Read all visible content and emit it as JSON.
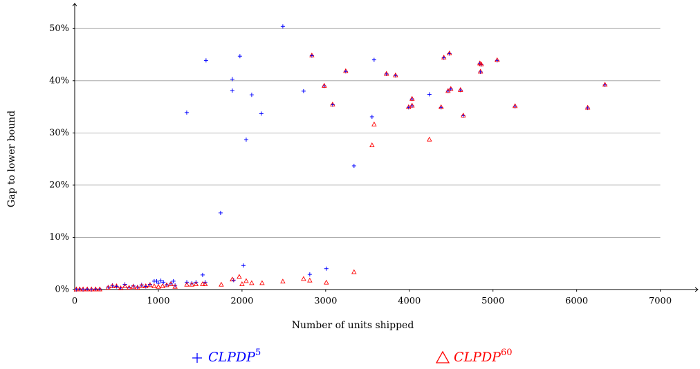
{
  "chart_data": {
    "type": "scatter",
    "x_label": "Number of units shipped",
    "y_label": "Gap to lower bound",
    "xlim": [
      0,
      7450
    ],
    "ylim": [
      0,
      54.8
    ],
    "xticks": [
      0,
      1000,
      2000,
      3000,
      4000,
      5000,
      6000,
      7000
    ],
    "yticks": [
      {
        "value": 0,
        "label": "0%"
      },
      {
        "value": 10,
        "label": "10%"
      },
      {
        "value": 20,
        "label": "20%"
      },
      {
        "value": 30,
        "label": "30%"
      },
      {
        "value": 40,
        "label": "40%"
      },
      {
        "value": 50,
        "label": "50%"
      }
    ],
    "grid": true,
    "series": [
      {
        "name": "CLPDP",
        "name_sup": "5",
        "color": "#0000ff",
        "marker": "plus",
        "x": [
          20,
          60,
          100,
          150,
          200,
          250,
          300,
          400,
          450,
          500,
          550,
          600,
          650,
          700,
          750,
          800,
          850,
          900,
          950,
          980,
          1000,
          1030,
          1060,
          1100,
          1150,
          1180,
          1200,
          1340,
          1400,
          1450,
          1529,
          1560,
          1900,
          2017,
          2810,
          3008,
          1339,
          1570,
          1975,
          1884,
          1884,
          2116,
          2231,
          2050,
          2488,
          1744,
          2736,
          3579,
          3554,
          3339,
          4240,
          2835,
          2983,
          3083,
          3240,
          3727,
          3835,
          3992,
          4033,
          4033,
          4380,
          4413,
          4463,
          4479,
          4496,
          4612,
          4645,
          4843,
          4860,
          4851,
          5050,
          5264,
          6132,
          6339
        ],
        "values": [
          0,
          0.1,
          0,
          0.1,
          0,
          0.1,
          0.1,
          0.5,
          0.8,
          0.6,
          0.3,
          1.0,
          0.4,
          0.7,
          0.5,
          0.9,
          0.6,
          1.0,
          1.6,
          1.6,
          1.2,
          1.7,
          1.4,
          0.9,
          1.2,
          1.6,
          0.8,
          1.4,
          1.2,
          1.4,
          2.8,
          1.4,
          1.8,
          4.6,
          2.9,
          4.0,
          33.9,
          43.9,
          44.7,
          40.3,
          38.1,
          37.3,
          33.7,
          28.7,
          50.4,
          14.7,
          38.0,
          44.0,
          33.1,
          23.7,
          37.4,
          44.8,
          39.0,
          35.4,
          41.8,
          41.3,
          41.0,
          34.9,
          35.2,
          36.5,
          34.9,
          44.4,
          38.0,
          45.2,
          38.4,
          38.2,
          33.3,
          43.3,
          43.1,
          41.7,
          43.9,
          35.1,
          34.8,
          39.2
        ]
      },
      {
        "name": "CLPDP",
        "name_sup": "60",
        "color": "#ff0000",
        "marker": "triangle",
        "x": [
          20,
          60,
          100,
          150,
          200,
          250,
          300,
          400,
          450,
          500,
          550,
          600,
          650,
          700,
          750,
          800,
          850,
          900,
          950,
          1000,
          1050,
          1100,
          1150,
          1200,
          1340,
          1400,
          1450,
          1529,
          1560,
          1752,
          1884,
          1967,
          2000,
          2050,
          2116,
          2240,
          2488,
          2736,
          2810,
          3008,
          3339,
          3579,
          3554,
          4240,
          2835,
          2983,
          3083,
          3240,
          3727,
          3835,
          3992,
          4033,
          4033,
          4380,
          4413,
          4463,
          4479,
          4496,
          4612,
          4645,
          4843,
          4860,
          4851,
          5050,
          5264,
          6132,
          6339
        ],
        "values": [
          0,
          0,
          0,
          0,
          0,
          0,
          0,
          0.3,
          0.6,
          0.6,
          0.2,
          0.6,
          0.3,
          0.5,
          0.3,
          0.6,
          0.6,
          0.8,
          0.6,
          0.5,
          0.6,
          0.8,
          1.0,
          0.5,
          0.9,
          0.9,
          1.0,
          1.0,
          1.0,
          0.9,
          1.9,
          2.4,
          1.0,
          1.6,
          1.2,
          1.2,
          1.5,
          2.0,
          1.7,
          1.3,
          3.3,
          31.6,
          27.6,
          28.7,
          44.8,
          39.0,
          35.4,
          41.8,
          41.3,
          41.0,
          34.9,
          35.2,
          36.5,
          34.9,
          44.4,
          38.0,
          45.2,
          38.4,
          38.2,
          33.3,
          43.3,
          43.1,
          41.7,
          43.9,
          35.1,
          34.8,
          39.2
        ]
      }
    ]
  }
}
